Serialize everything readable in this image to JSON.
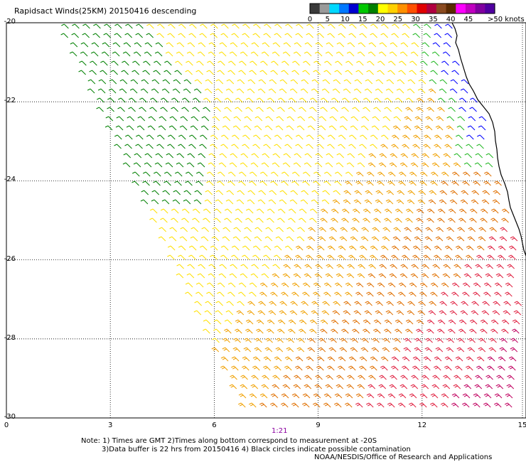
{
  "title": "Rapidsact Winds(25KM) 20150416 descending",
  "legend": {
    "units": ">50 knots",
    "labels": [
      "0",
      "5",
      "10",
      "15",
      "20",
      "25",
      "30",
      "35",
      "40",
      "45"
    ],
    "colors": [
      "#3a3a3a",
      "#9a9a9a",
      "#00d8ff",
      "#0078ff",
      "#0000d0",
      "#00c800",
      "#008000",
      "#ffff00",
      "#ffd000",
      "#ff9000",
      "#ff5000",
      "#e00000",
      "#b00040",
      "#8a4a20",
      "#5a2a00",
      "#ff00ff",
      "#c000c0",
      "#8000a0",
      "#5000a0"
    ]
  },
  "axes": {
    "x_ticks": [
      "0",
      "3",
      "6",
      "9",
      "12",
      "15"
    ],
    "y_ticks": [
      "-20",
      "-22",
      "-24",
      "-26",
      "-28",
      "-30"
    ],
    "lon_range": [
      0,
      15
    ],
    "lat_range": [
      -30,
      -20
    ]
  },
  "time_label": "1:21",
  "notes": {
    "line1": "Note: 1) Times are GMT 2)Times along bottom correspond to measurement at -20S",
    "line2": "3)Data buffer is 22 hrs from 20150416 4) Black circles indicate possible contamination",
    "line3": "NOAA/NESDIS/Office of Research and Applications"
  },
  "wind_field": {
    "direction": "southerly",
    "speed_colors": {
      "dark_green": "#008000",
      "green": "#22b822",
      "blue": "#0000ff",
      "yellow": "#ffe000",
      "orange": "#f0a000",
      "dark_orange": "#e07000",
      "red": "#e02040",
      "magenta": "#c00060"
    }
  }
}
